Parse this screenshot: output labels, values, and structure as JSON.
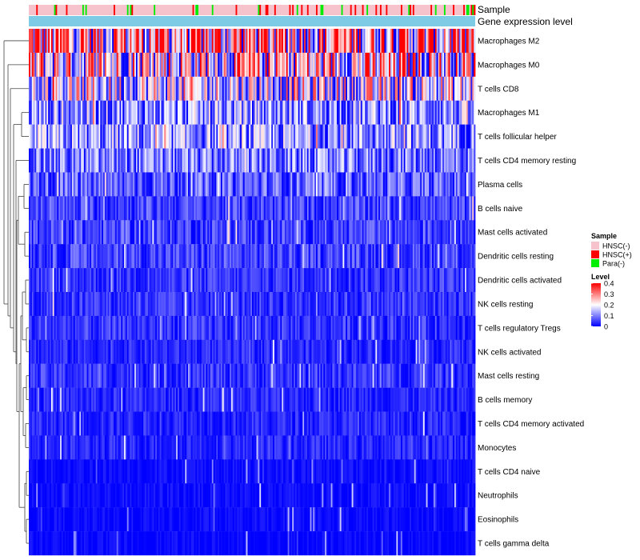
{
  "chart_data": {
    "type": "heatmap",
    "title": "",
    "annotation_rows": [
      {
        "name": "Sample",
        "label": "Sample"
      },
      {
        "name": "Gene expression level",
        "label": "Gene expression level",
        "color": "#7ecbe6"
      }
    ],
    "rows": [
      {
        "label": "Macrophages M2",
        "mean": 0.26
      },
      {
        "label": "Macrophages M0",
        "mean": 0.21
      },
      {
        "label": "T cells CD8",
        "mean": 0.17
      },
      {
        "label": "Macrophages M1",
        "mean": 0.11
      },
      {
        "label": "T cells follicular helper",
        "mean": 0.11
      },
      {
        "label": "T cells CD4 memory resting",
        "mean": 0.09
      },
      {
        "label": "Plasma cells",
        "mean": 0.07
      },
      {
        "label": "B cells naive",
        "mean": 0.05
      },
      {
        "label": "Mast cells activated",
        "mean": 0.05
      },
      {
        "label": "Dendritic cells resting",
        "mean": 0.05
      },
      {
        "label": "Dendritic cells activated",
        "mean": 0.04
      },
      {
        "label": "NK cells resting",
        "mean": 0.04
      },
      {
        "label": "T cells regulatory  Tregs",
        "mean": 0.04
      },
      {
        "label": "NK cells activated",
        "mean": 0.03
      },
      {
        "label": "Mast cells resting",
        "mean": 0.04
      },
      {
        "label": "B cells memory",
        "mean": 0.03
      },
      {
        "label": "T cells CD4 memory activated",
        "mean": 0.03
      },
      {
        "label": "Monocytes",
        "mean": 0.03
      },
      {
        "label": "T cells CD4 naive",
        "mean": 0.01
      },
      {
        "label": "Neutrophils",
        "mean": 0.01
      },
      {
        "label": "Eosinophils",
        "mean": 0.005
      },
      {
        "label": "T cells gamma delta",
        "mean": 0.003
      }
    ],
    "legend_sample": {
      "title": "Sample",
      "entries": [
        {
          "label": "HNSC(-)",
          "color": "#f6c3cc"
        },
        {
          "label": "HNSC(+)",
          "color": "#ff0000"
        },
        {
          "label": "Para(-)",
          "color": "#00ee00"
        }
      ]
    },
    "legend_level": {
      "title": "Level",
      "ticks": [
        {
          "value": 0.4,
          "label": "0.4"
        },
        {
          "value": 0.3,
          "label": "0.3"
        },
        {
          "value": 0.2,
          "label": "0.2"
        },
        {
          "value": 0.1,
          "label": "0.1"
        },
        {
          "value": 0,
          "label": "0"
        }
      ],
      "range": [
        0,
        0.4
      ],
      "colors": [
        "#0000ff",
        "#ffffff",
        "#ff0000"
      ]
    }
  }
}
